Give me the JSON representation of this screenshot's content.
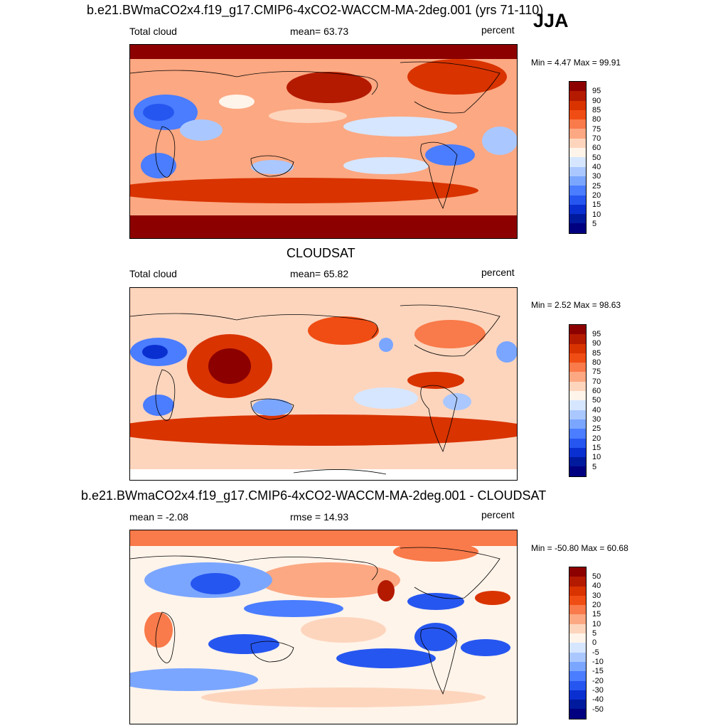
{
  "season": "JJA",
  "panels": [
    {
      "title": "b.e21.BWmaCO2x4.f19_g17.CMIP6-4xCO2-WACCM-MA-2deg.001 (yrs 71-110)",
      "left": "Total cloud",
      "center": "mean=  63.73",
      "right": "percent",
      "minmax": "Min =   4.47 Max =  99.91",
      "map_name": "model total cloud map",
      "levels": [
        "95",
        "90",
        "85",
        "80",
        "75",
        "70",
        "60",
        "50",
        "40",
        "30",
        "25",
        "20",
        "15",
        "10",
        "5"
      ]
    },
    {
      "title": "CLOUDSAT",
      "left": "Total cloud",
      "center": "mean=  65.82",
      "right": "percent",
      "minmax": "Min =   2.52 Max =  98.63",
      "map_name": "cloudsat total cloud map",
      "levels": [
        "95",
        "90",
        "85",
        "80",
        "75",
        "70",
        "60",
        "50",
        "40",
        "30",
        "25",
        "20",
        "15",
        "10",
        "5"
      ]
    },
    {
      "title": "b.e21.BWmaCO2x4.f19_g17.CMIP6-4xCO2-WACCM-MA-2deg.001 - CLOUDSAT",
      "left": "mean =  -2.08",
      "center": "rmse =  14.93",
      "right": "percent",
      "minmax": "Min = -50.80 Max =  60.68",
      "map_name": "difference map",
      "levels": [
        "50",
        "40",
        "30",
        "20",
        "15",
        "10",
        "5",
        "0",
        "-5",
        "-10",
        "-15",
        "-20",
        "-30",
        "-40",
        "-50"
      ]
    }
  ],
  "colors": {
    "scale": [
      "#8c0000",
      "#b31a00",
      "#d93300",
      "#f04d14",
      "#f97a4a",
      "#fca882",
      "#fdd5bd",
      "#fff4ea",
      "#d6e6ff",
      "#aac8ff",
      "#7aa6ff",
      "#4a7dff",
      "#2656f0",
      "#0a2fd0",
      "#001a9e",
      "#000080"
    ]
  }
}
